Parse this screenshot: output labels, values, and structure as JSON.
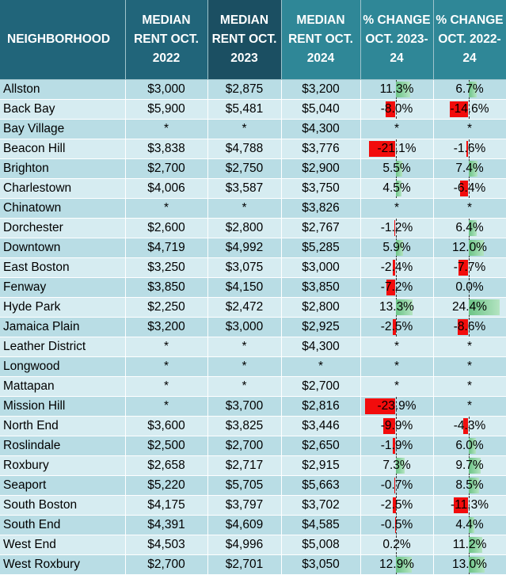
{
  "headers": {
    "neighborhood": "NEIGHBORHOOD",
    "rent_2022": "MEDIAN RENT OCT. 2022",
    "rent_2023": "MEDIAN RENT OCT. 2023",
    "rent_2024": "MEDIAN RENT OCT. 2024",
    "change_23_24": "% CHANGE OCT. 2023-24",
    "change_22_24": "% CHANGE OCT. 2022-24"
  },
  "colors": {
    "header_dark": "#21657a",
    "header_darker": "#1b4f62",
    "header_teal": "#2f8797",
    "row_a": "#b9dde5",
    "row_b": "#d6ecf1",
    "bar_positive": "#6cc486",
    "bar_negative": "#f20c0c"
  },
  "rows": [
    {
      "name": "Allston",
      "r2022": "$3,000",
      "r2023": "$2,875",
      "r2024": "$3,200",
      "c1": "11.3%",
      "v1": 11.3,
      "c2": "6.7%",
      "v2": 6.7
    },
    {
      "name": "Back Bay",
      "r2022": "$5,900",
      "r2023": "$5,481",
      "r2024": "$5,040",
      "c1": "-8.0%",
      "v1": -8.0,
      "c2": "-14.6%",
      "v2": -14.6
    },
    {
      "name": "Bay Village",
      "r2022": "*",
      "r2023": "*",
      "r2024": "$4,300",
      "c1": "*",
      "v1": null,
      "c2": "*",
      "v2": null
    },
    {
      "name": "Beacon Hill",
      "r2022": "$3,838",
      "r2023": "$4,788",
      "r2024": "$3,776",
      "c1": "-21.1%",
      "v1": -21.1,
      "c2": "-1.6%",
      "v2": -1.6
    },
    {
      "name": "Brighton",
      "r2022": "$2,700",
      "r2023": "$2,750",
      "r2024": "$2,900",
      "c1": "5.5%",
      "v1": 5.5,
      "c2": "7.4%",
      "v2": 7.4
    },
    {
      "name": "Charlestown",
      "r2022": "$4,006",
      "r2023": "$3,587",
      "r2024": "$3,750",
      "c1": "4.5%",
      "v1": 4.5,
      "c2": "-6.4%",
      "v2": -6.4
    },
    {
      "name": "Chinatown",
      "r2022": "*",
      "r2023": "*",
      "r2024": "$3,826",
      "c1": "*",
      "v1": null,
      "c2": "*",
      "v2": null
    },
    {
      "name": "Dorchester",
      "r2022": "$2,600",
      "r2023": "$2,800",
      "r2024": "$2,767",
      "c1": "-1.2%",
      "v1": -1.2,
      "c2": "6.4%",
      "v2": 6.4
    },
    {
      "name": "Downtown",
      "r2022": "$4,719",
      "r2023": "$4,992",
      "r2024": "$5,285",
      "c1": "5.9%",
      "v1": 5.9,
      "c2": "12.0%",
      "v2": 12.0
    },
    {
      "name": "East Boston",
      "r2022": "$3,250",
      "r2023": "$3,075",
      "r2024": "$3,000",
      "c1": "-2.4%",
      "v1": -2.4,
      "c2": "-7.7%",
      "v2": -7.7
    },
    {
      "name": "Fenway",
      "r2022": "$3,850",
      "r2023": "$4,150",
      "r2024": "$3,850",
      "c1": "-7.2%",
      "v1": -7.2,
      "c2": "0.0%",
      "v2": 0.0
    },
    {
      "name": "Hyde Park",
      "r2022": "$2,250",
      "r2023": "$2,472",
      "r2024": "$2,800",
      "c1": "13.3%",
      "v1": 13.3,
      "c2": "24.4%",
      "v2": 24.4
    },
    {
      "name": "Jamaica Plain",
      "r2022": "$3,200",
      "r2023": "$3,000",
      "r2024": "$2,925",
      "c1": "-2.5%",
      "v1": -2.5,
      "c2": "-8.6%",
      "v2": -8.6
    },
    {
      "name": "Leather District",
      "r2022": "*",
      "r2023": "*",
      "r2024": "$4,300",
      "c1": "*",
      "v1": null,
      "c2": "*",
      "v2": null
    },
    {
      "name": "Longwood",
      "r2022": "*",
      "r2023": "*",
      "r2024": "*",
      "c1": "*",
      "v1": null,
      "c2": "*",
      "v2": null
    },
    {
      "name": "Mattapan",
      "r2022": "*",
      "r2023": "*",
      "r2024": "$2,700",
      "c1": "*",
      "v1": null,
      "c2": "*",
      "v2": null
    },
    {
      "name": "Mission Hill",
      "r2022": "*",
      "r2023": "$3,700",
      "r2024": "$2,816",
      "c1": "-23.9%",
      "v1": -23.9,
      "c2": "*",
      "v2": null
    },
    {
      "name": "North End",
      "r2022": "$3,600",
      "r2023": "$3,825",
      "r2024": "$3,446",
      "c1": "-9.9%",
      "v1": -9.9,
      "c2": "-4.3%",
      "v2": -4.3
    },
    {
      "name": "Roslindale",
      "r2022": "$2,500",
      "r2023": "$2,700",
      "r2024": "$2,650",
      "c1": "-1.9%",
      "v1": -1.9,
      "c2": "6.0%",
      "v2": 6.0
    },
    {
      "name": "Roxbury",
      "r2022": "$2,658",
      "r2023": "$2,717",
      "r2024": "$2,915",
      "c1": "7.3%",
      "v1": 7.3,
      "c2": "9.7%",
      "v2": 9.7
    },
    {
      "name": "Seaport",
      "r2022": "$5,220",
      "r2023": "$5,705",
      "r2024": "$5,663",
      "c1": "-0.7%",
      "v1": -0.7,
      "c2": "8.5%",
      "v2": 8.5
    },
    {
      "name": "South Boston",
      "r2022": "$4,175",
      "r2023": "$3,797",
      "r2024": "$3,702",
      "c1": "-2.5%",
      "v1": -2.5,
      "c2": "-11.3%",
      "v2": -11.3
    },
    {
      "name": "South End",
      "r2022": "$4,391",
      "r2023": "$4,609",
      "r2024": "$4,585",
      "c1": "-0.5%",
      "v1": -0.5,
      "c2": "4.4%",
      "v2": 4.4
    },
    {
      "name": "West End",
      "r2022": "$4,503",
      "r2023": "$4,996",
      "r2024": "$5,008",
      "c1": "0.2%",
      "v1": 0.2,
      "c2": "11.2%",
      "v2": 11.2
    },
    {
      "name": "West Roxbury",
      "r2022": "$2,700",
      "r2023": "$2,701",
      "r2024": "$3,050",
      "c1": "12.9%",
      "v1": 12.9,
      "c2": "13.0%",
      "v2": 13.0
    }
  ]
}
